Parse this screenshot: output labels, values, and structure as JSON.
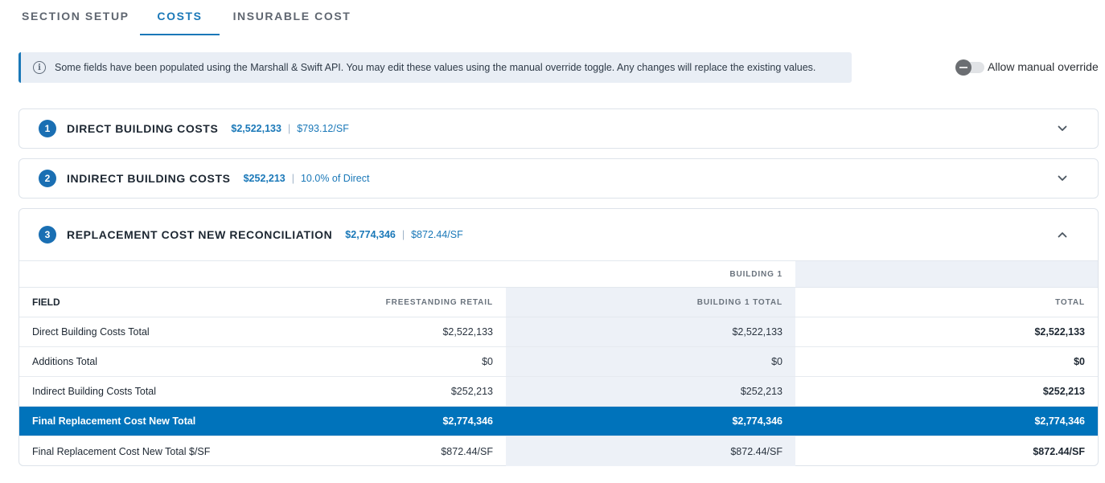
{
  "tabs": [
    {
      "label": "SECTION SETUP",
      "active": false
    },
    {
      "label": "COSTS",
      "active": true
    },
    {
      "label": "INSURABLE COST",
      "active": false
    }
  ],
  "banner": {
    "icon": "info-icon",
    "text": "Some fields have been populated using the Marshall & Swift API. You may edit these values using the manual override toggle. Any changes will replace the existing values."
  },
  "override": {
    "label": "Allow manual override",
    "enabled": false
  },
  "panels": [
    {
      "number": "1",
      "title": "DIRECT BUILDING COSTS",
      "value": "$2,522,133",
      "sep": "|",
      "sub": "$793.12/SF",
      "expanded": false
    },
    {
      "number": "2",
      "title": "INDIRECT BUILDING COSTS",
      "value": "$252,213",
      "sep": "|",
      "sub": "10.0% of Direct",
      "expanded": false
    },
    {
      "number": "3",
      "title": "REPLACEMENT COST NEW RECONCILIATION",
      "value": "$2,774,346",
      "sep": "|",
      "sub": "$872.44/SF",
      "expanded": true
    }
  ],
  "table": {
    "group_header": "BUILDING 1",
    "columns": [
      "FIELD",
      "FREESTANDING RETAIL",
      "BUILDING 1 TOTAL",
      "TOTAL"
    ],
    "rows": [
      {
        "field": "Direct Building Costs Total",
        "retail": "$2,522,133",
        "building_total": "$2,522,133",
        "total": "$2,522,133",
        "highlight": false
      },
      {
        "field": "Additions Total",
        "retail": "$0",
        "building_total": "$0",
        "total": "$0",
        "highlight": false
      },
      {
        "field": "Indirect Building Costs Total",
        "retail": "$252,213",
        "building_total": "$252,213",
        "total": "$252,213",
        "highlight": false
      },
      {
        "field": "Final Replacement Cost New Total",
        "retail": "$2,774,346",
        "building_total": "$2,774,346",
        "total": "$2,774,346",
        "highlight": true
      },
      {
        "field": "Final Replacement Cost New Total $/SF",
        "retail": "$872.44/SF",
        "building_total": "$872.44/SF",
        "total": "$872.44/SF",
        "highlight": false
      }
    ]
  },
  "colors": {
    "accent": "#1a78b8",
    "highlight_row": "#0073bb",
    "shaded_column": "#edf1f7",
    "banner_bg": "#e9eef5"
  }
}
